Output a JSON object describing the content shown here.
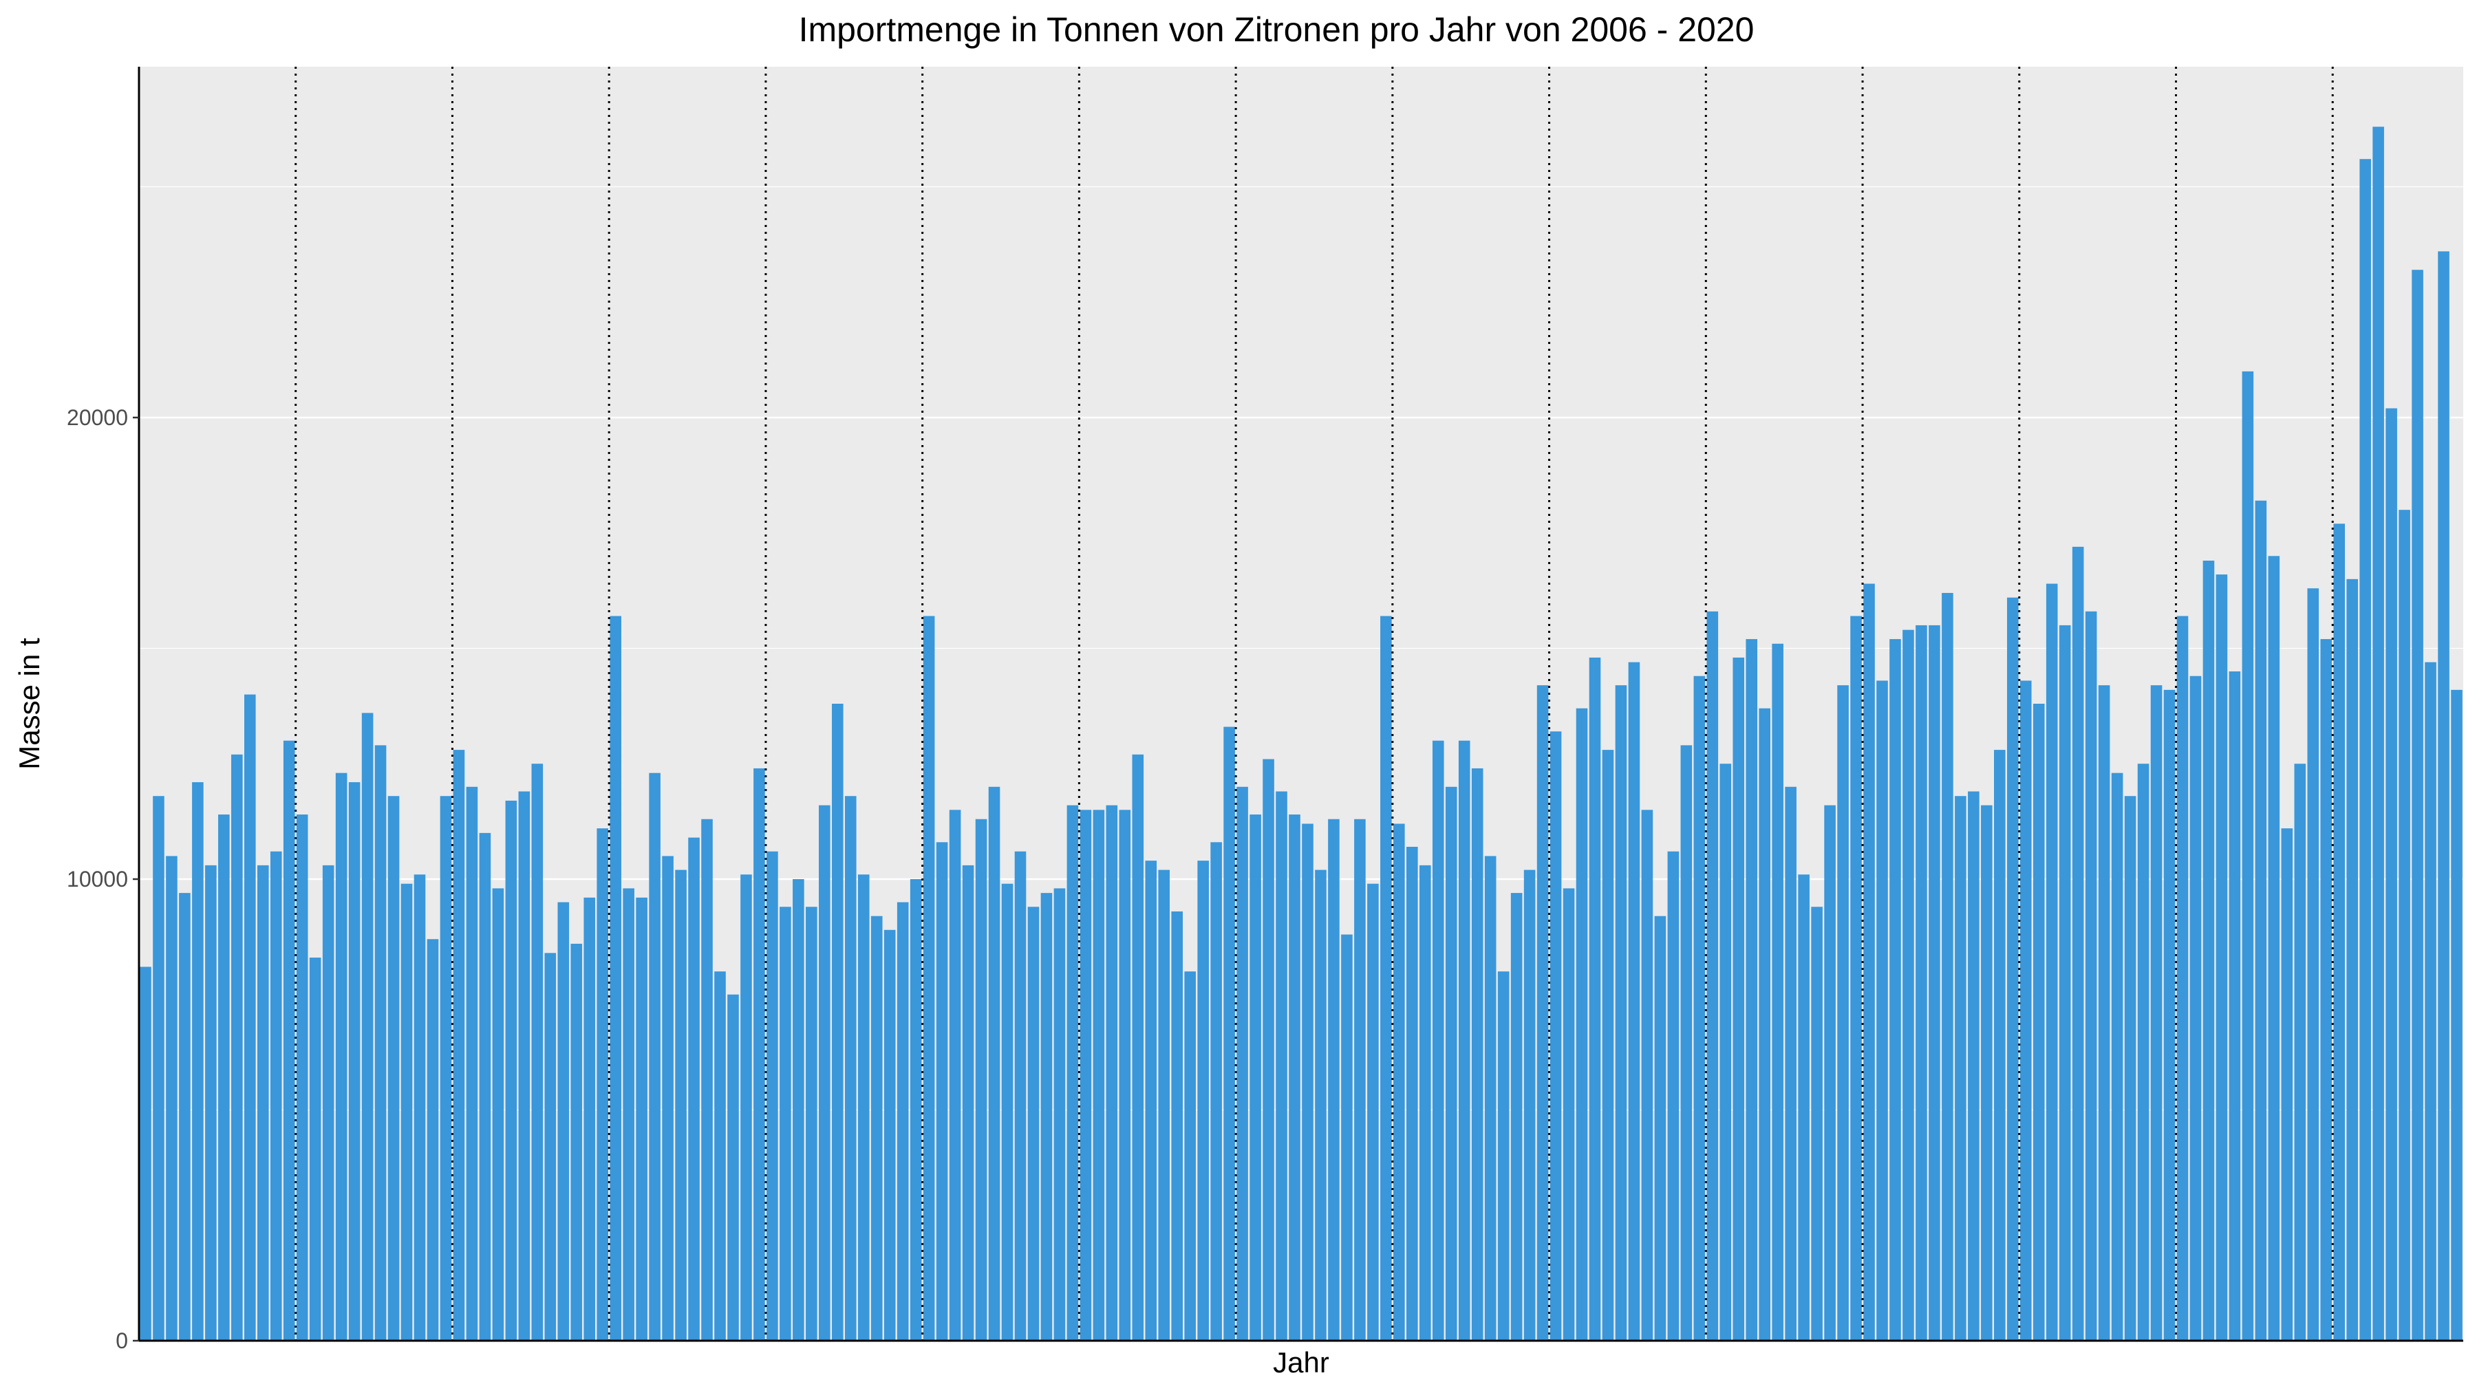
{
  "chart_data": {
    "type": "bar",
    "title": "Importmenge in Tonnen von Zitronen pro Jahr von 2006 - 2020",
    "xlabel": "Jahr",
    "ylabel": "Masse in t",
    "ylim": [
      0,
      27600
    ],
    "yticks": [
      0,
      10000,
      20000
    ],
    "ytick_labels": [
      "0",
      "10000",
      "20000"
    ],
    "grid": true,
    "colors": {
      "bar": "#3a97da",
      "panel": "#ebebeb",
      "grid": "#ffffff",
      "year_separator": "#000000"
    },
    "year_separators_after_month": [
      12,
      24,
      36,
      48,
      60,
      72,
      84,
      96,
      108,
      120,
      132,
      144,
      156,
      168
    ],
    "values": [
      8100,
      11800,
      10500,
      9700,
      12100,
      10300,
      11400,
      12700,
      14000,
      10300,
      10600,
      13000,
      11400,
      8300,
      10300,
      12300,
      12100,
      13600,
      12900,
      11800,
      9900,
      10100,
      8700,
      11800,
      12800,
      12000,
      11000,
      9800,
      11700,
      11900,
      12500,
      8400,
      9500,
      8600,
      9600,
      11100,
      15700,
      9800,
      9600,
      12300,
      10500,
      10200,
      10900,
      11300,
      8000,
      7500,
      10100,
      12400,
      10600,
      9400,
      10000,
      9400,
      11600,
      13800,
      11800,
      10100,
      9200,
      8900,
      9500,
      10000,
      15700,
      10800,
      11500,
      10300,
      11300,
      12000,
      9900,
      10600,
      9400,
      9700,
      9800,
      11600,
      11500,
      11500,
      11600,
      11500,
      12700,
      10400,
      10200,
      9300,
      8000,
      10400,
      10800,
      13300,
      12000,
      11400,
      12600,
      11900,
      11400,
      11200,
      10200,
      11300,
      8800,
      11300,
      9900,
      15700,
      11200,
      10700,
      10300,
      13000,
      12000,
      13000,
      12400,
      10500,
      8000,
      9700,
      10200,
      14200,
      13200,
      9800,
      13700,
      14800,
      12800,
      14200,
      14700,
      11500,
      9200,
      10600,
      12900,
      14400,
      15800,
      12500,
      14800,
      15200,
      13700,
      15100,
      12000,
      10100,
      9400,
      11600,
      14200,
      15700,
      16400,
      14300,
      15200,
      15400,
      15500,
      15500,
      16200,
      11800,
      11900,
      11600,
      12800,
      16100,
      14300,
      13800,
      16400,
      15500,
      17200,
      15800,
      14200,
      12300,
      11800,
      12500,
      14200,
      14100,
      15700,
      14400,
      16900,
      16600,
      14500,
      21000,
      18200,
      17000,
      11100,
      12500,
      16300,
      15200,
      17700,
      16500,
      25600,
      26300,
      20200,
      18000,
      23200,
      14700,
      23600,
      14100
    ]
  }
}
